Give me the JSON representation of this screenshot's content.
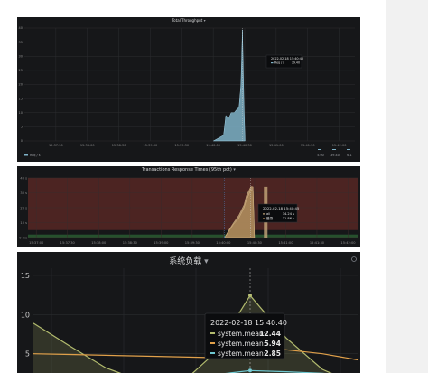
{
  "panels": {
    "throughput": {
      "title": "Total Throughput",
      "caret": "▾",
      "legend_label": "Req / s",
      "legend_values": [
        "5.00",
        "39.40",
        "6.1"
      ],
      "tooltip": {
        "time": "2022-02-18 15:40:40",
        "label": "Req / s",
        "value": "39.40"
      }
    },
    "response": {
      "title": "Transactions Response Times (95th pct)",
      "caret": "▾",
      "tooltip": {
        "time": "2022-02-18 15:40:45",
        "rows": [
          {
            "label": "all",
            "value": "34.24 s"
          },
          {
            "label": "登录",
            "value": "31.86 s"
          }
        ]
      }
    },
    "system": {
      "title": "系统负载",
      "caret": "▾",
      "tooltip": {
        "time": "2022-02-18 15:40:40",
        "rows": [
          {
            "label": "system.mean:",
            "value": "12.44",
            "color": "#b2bb6e"
          },
          {
            "label": "system.mean:",
            "value": "5.94",
            "color": "#e0a04a"
          },
          {
            "label": "system.mean:",
            "value": "2.85",
            "color": "#6ec7d0"
          }
        ]
      }
    }
  },
  "colors": {
    "panel_bg": "#161719",
    "throughput_fill": "#7fb3c8",
    "response_fill": "#b5956a",
    "band_red": "#7a2f2a",
    "series_olive": "#b2bb6e",
    "series_orange": "#e0a04a",
    "series_teal": "#6ec7d0"
  },
  "chart_data": [
    {
      "type": "area",
      "title": "Total Throughput",
      "x": [
        "15:37:30",
        "15:38:00",
        "15:38:30",
        "15:39:00",
        "15:39:30",
        "15:40:00",
        "15:40:30",
        "15:41:00",
        "15:41:30",
        "15:42:00"
      ],
      "x_ticks": [
        "15:37:30",
        "15:38:00",
        "15:38:30",
        "15:39:00",
        "15:39:30",
        "15:40:00",
        "15:40:30",
        "15:41:00",
        "15:41:30",
        "15:42:00"
      ],
      "y_ticks": [
        0,
        5,
        10,
        15,
        20,
        25,
        30,
        35,
        40
      ],
      "ylim": [
        0,
        40
      ],
      "series": [
        {
          "name": "Req / s",
          "points": [
            [
              15.6667,
              0
            ],
            [
              15.6694,
              2
            ],
            [
              15.67,
              9
            ],
            [
              15.6708,
              8
            ],
            [
              15.6714,
              10
            ],
            [
              15.6722,
              10
            ],
            [
              15.6728,
              11
            ],
            [
              15.6735,
              12
            ],
            [
              15.674,
              20
            ],
            [
              15.6744,
              39.4
            ],
            [
              15.6748,
              13
            ],
            [
              15.6751,
              0
            ]
          ]
        }
      ]
    },
    {
      "type": "area",
      "title": "Transactions Response Times (95th pct)",
      "x_ticks": [
        "15:37:00",
        "15:37:30",
        "15:38:00",
        "15:38:30",
        "15:39:00",
        "15:39:30",
        "15:40:00",
        "15:40:30",
        "15:41:00",
        "15:41:30",
        "15:42:00"
      ],
      "y_ticks": [
        "0 ms",
        "10 s",
        "20 s",
        "30 s",
        "40 s"
      ],
      "ylim": [
        0,
        40
      ],
      "series": [
        {
          "name": "all",
          "points": [
            [
              15.667,
              0
            ],
            [
              15.6681,
              5
            ],
            [
              15.6694,
              10
            ],
            [
              15.6708,
              15
            ],
            [
              15.6722,
              22
            ],
            [
              15.6728,
              28
            ],
            [
              15.674,
              34.24
            ],
            [
              15.6746,
              34
            ],
            [
              15.675,
              0
            ]
          ]
        },
        {
          "name": "登录",
          "points": [
            [
              15.667,
              0
            ],
            [
              15.6681,
              4
            ],
            [
              15.6694,
              9
            ],
            [
              15.6708,
              13
            ],
            [
              15.6722,
              20
            ],
            [
              15.6728,
              25
            ],
            [
              15.674,
              31.86
            ],
            [
              15.6746,
              31
            ],
            [
              15.675,
              0
            ]
          ]
        }
      ]
    },
    {
      "type": "line",
      "title": "系统负载",
      "y_ticks": [
        5,
        10,
        15
      ],
      "ylim": [
        0,
        15
      ],
      "series": [
        {
          "points": [
            [
              0,
              8.9
            ],
            [
              1,
              6.0
            ],
            [
              2,
              3.2
            ],
            [
              3,
              1.5
            ],
            [
              4,
              0.8
            ],
            [
              5,
              5.0
            ],
            [
              6,
              12.44
            ],
            [
              7,
              7.0
            ],
            [
              8,
              3.0
            ],
            [
              9,
              1.0
            ]
          ]
        },
        {
          "points": [
            [
              0,
              5.0
            ],
            [
              1,
              4.9
            ],
            [
              2,
              4.8
            ],
            [
              3,
              4.7
            ],
            [
              4,
              4.6
            ],
            [
              5,
              4.5
            ],
            [
              6,
              5.94
            ],
            [
              7,
              5.5
            ],
            [
              8,
              5.0
            ],
            [
              9,
              4.2
            ]
          ]
        },
        {
          "points": [
            [
              0,
              1.9
            ],
            [
              1,
              2.0
            ],
            [
              2,
              2.0
            ],
            [
              3,
              2.1
            ],
            [
              4,
              2.2
            ],
            [
              5,
              2.3
            ],
            [
              6,
              2.85
            ],
            [
              7,
              2.7
            ],
            [
              8,
              2.5
            ],
            [
              9,
              2.0
            ]
          ]
        }
      ]
    }
  ]
}
